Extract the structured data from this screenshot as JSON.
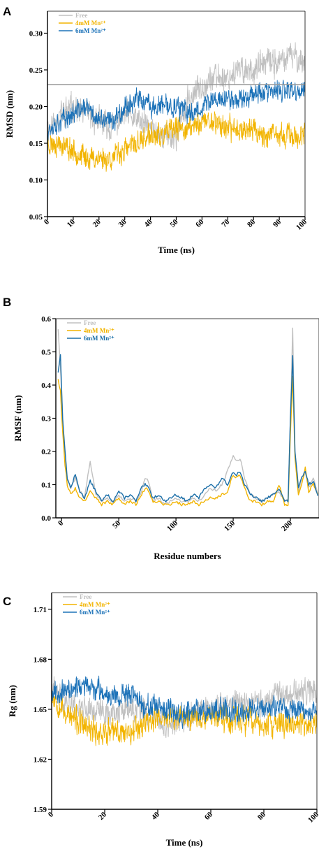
{
  "chart_data": [
    {
      "panel_letter": "A",
      "type": "line",
      "xlabel": "Time (ns)",
      "ylabel": "RMSD (nm)",
      "xlim": [
        0,
        100
      ],
      "ylim": [
        0.05,
        0.33
      ],
      "xticks": [
        0,
        10,
        20,
        30,
        40,
        50,
        60,
        70,
        80,
        90,
        100
      ],
      "yticks": [
        0.05,
        0.1,
        0.15,
        0.2,
        0.25,
        0.3
      ],
      "ytick_labels": [
        "0.05",
        "0.10",
        "0.15",
        "0.20",
        "0.25",
        "0.30"
      ],
      "legend_position": "top-left",
      "reference_line": {
        "y": 0.23,
        "color": "#999999"
      },
      "series": [
        {
          "name": "Free",
          "color": "#c0c0c0",
          "noise": 0.014,
          "seed": 11,
          "x": [
            0,
            5,
            10,
            15,
            20,
            25,
            30,
            35,
            40,
            45,
            50,
            55,
            60,
            65,
            70,
            75,
            80,
            85,
            90,
            95,
            100
          ],
          "y": [
            0.17,
            0.19,
            0.2,
            0.19,
            0.18,
            0.17,
            0.19,
            0.18,
            0.17,
            0.16,
            0.16,
            0.21,
            0.23,
            0.24,
            0.24,
            0.25,
            0.25,
            0.26,
            0.26,
            0.27,
            0.26
          ]
        },
        {
          "name": "4mM Mn²⁺",
          "color": "#f2b400",
          "noise": 0.012,
          "seed": 23,
          "x": [
            0,
            5,
            10,
            15,
            20,
            25,
            30,
            35,
            40,
            45,
            50,
            55,
            60,
            65,
            70,
            75,
            80,
            85,
            90,
            95,
            100
          ],
          "y": [
            0.15,
            0.15,
            0.14,
            0.13,
            0.13,
            0.13,
            0.14,
            0.15,
            0.16,
            0.16,
            0.17,
            0.17,
            0.18,
            0.18,
            0.17,
            0.17,
            0.17,
            0.16,
            0.16,
            0.16,
            0.16
          ]
        },
        {
          "name": "6mM Mn²⁺",
          "color": "#1c72b8",
          "noise": 0.011,
          "seed": 37,
          "x": [
            0,
            5,
            10,
            15,
            20,
            25,
            30,
            35,
            40,
            45,
            50,
            55,
            60,
            65,
            70,
            75,
            80,
            85,
            90,
            95,
            100
          ],
          "y": [
            0.17,
            0.18,
            0.19,
            0.2,
            0.18,
            0.18,
            0.2,
            0.21,
            0.2,
            0.2,
            0.2,
            0.19,
            0.2,
            0.21,
            0.21,
            0.21,
            0.22,
            0.22,
            0.22,
            0.22,
            0.22
          ]
        }
      ]
    },
    {
      "panel_letter": "B",
      "type": "line",
      "xlabel": "Residue numbers",
      "ylabel": "RMSF (nm)",
      "xlim": [
        -5,
        225
      ],
      "ylim": [
        0.0,
        0.6
      ],
      "xticks": [
        0,
        50,
        100,
        150,
        200
      ],
      "yticks": [
        0.0,
        0.1,
        0.2,
        0.3,
        0.4,
        0.5,
        0.6
      ],
      "ytick_labels": [
        "0.0",
        "0.1",
        "0.2",
        "0.3",
        "0.4",
        "0.5",
        "0.6"
      ],
      "legend_position": "top-left",
      "series": [
        {
          "name": "Free",
          "color": "#c0c0c0",
          "noise": 0.004,
          "seed": 5,
          "x": [
            -3,
            -1,
            1,
            3,
            5,
            8,
            12,
            16,
            20,
            25,
            30,
            35,
            40,
            45,
            50,
            55,
            60,
            65,
            70,
            73,
            76,
            80,
            85,
            90,
            95,
            100,
            105,
            110,
            115,
            120,
            125,
            130,
            135,
            140,
            145,
            150,
            153,
            156,
            160,
            165,
            170,
            175,
            180,
            185,
            190,
            195,
            198,
            200,
            202,
            204,
            207,
            210,
            213,
            216,
            220,
            224
          ],
          "y": [
            0.57,
            0.45,
            0.3,
            0.18,
            0.12,
            0.09,
            0.12,
            0.08,
            0.06,
            0.17,
            0.07,
            0.05,
            0.06,
            0.05,
            0.07,
            0.05,
            0.06,
            0.05,
            0.08,
            0.12,
            0.11,
            0.05,
            0.06,
            0.04,
            0.05,
            0.06,
            0.05,
            0.05,
            0.06,
            0.05,
            0.07,
            0.09,
            0.08,
            0.1,
            0.14,
            0.19,
            0.17,
            0.18,
            0.12,
            0.07,
            0.06,
            0.05,
            0.06,
            0.07,
            0.08,
            0.05,
            0.06,
            0.3,
            0.57,
            0.2,
            0.08,
            0.12,
            0.15,
            0.09,
            0.12,
            0.07
          ]
        },
        {
          "name": "4mM Mn²⁺",
          "color": "#f2b400",
          "noise": 0.004,
          "seed": 9,
          "x": [
            -3,
            -1,
            1,
            3,
            5,
            8,
            12,
            16,
            20,
            25,
            30,
            35,
            40,
            45,
            50,
            55,
            60,
            65,
            70,
            73,
            76,
            80,
            85,
            90,
            95,
            100,
            105,
            110,
            115,
            120,
            125,
            130,
            135,
            140,
            145,
            150,
            153,
            156,
            160,
            165,
            170,
            175,
            180,
            185,
            190,
            195,
            198,
            200,
            202,
            204,
            207,
            210,
            213,
            216,
            220,
            224
          ],
          "y": [
            0.42,
            0.38,
            0.26,
            0.16,
            0.1,
            0.07,
            0.09,
            0.06,
            0.05,
            0.08,
            0.06,
            0.04,
            0.05,
            0.04,
            0.06,
            0.04,
            0.05,
            0.04,
            0.07,
            0.09,
            0.08,
            0.05,
            0.05,
            0.04,
            0.04,
            0.05,
            0.04,
            0.04,
            0.05,
            0.04,
            0.05,
            0.06,
            0.06,
            0.07,
            0.08,
            0.13,
            0.12,
            0.13,
            0.09,
            0.05,
            0.05,
            0.04,
            0.05,
            0.05,
            0.1,
            0.04,
            0.04,
            0.25,
            0.43,
            0.18,
            0.07,
            0.1,
            0.15,
            0.08,
            0.1,
            0.07
          ]
        },
        {
          "name": "6mM Mn²⁺",
          "color": "#1c6fa8",
          "noise": 0.004,
          "seed": 13,
          "x": [
            -3,
            -1,
            1,
            3,
            5,
            8,
            12,
            16,
            20,
            25,
            30,
            35,
            40,
            45,
            50,
            55,
            60,
            65,
            70,
            73,
            76,
            80,
            85,
            90,
            95,
            100,
            105,
            110,
            115,
            120,
            125,
            130,
            135,
            140,
            145,
            150,
            153,
            156,
            160,
            165,
            170,
            175,
            180,
            185,
            190,
            195,
            198,
            200,
            202,
            204,
            207,
            210,
            213,
            216,
            220,
            224
          ],
          "y": [
            0.44,
            0.49,
            0.3,
            0.2,
            0.12,
            0.09,
            0.13,
            0.08,
            0.06,
            0.11,
            0.08,
            0.05,
            0.07,
            0.05,
            0.08,
            0.06,
            0.07,
            0.05,
            0.09,
            0.1,
            0.09,
            0.06,
            0.07,
            0.05,
            0.06,
            0.07,
            0.06,
            0.05,
            0.07,
            0.06,
            0.09,
            0.1,
            0.09,
            0.12,
            0.1,
            0.14,
            0.13,
            0.14,
            0.1,
            0.07,
            0.06,
            0.05,
            0.06,
            0.07,
            0.09,
            0.05,
            0.05,
            0.3,
            0.49,
            0.2,
            0.09,
            0.12,
            0.14,
            0.1,
            0.11,
            0.07
          ]
        }
      ]
    },
    {
      "panel_letter": "C",
      "type": "line",
      "xlabel": "Time (ns)",
      "ylabel": "Rg (nm)",
      "xlim": [
        0,
        100
      ],
      "ylim": [
        1.59,
        1.72
      ],
      "xticks": [
        0,
        20,
        40,
        60,
        80,
        100
      ],
      "yticks": [
        1.59,
        1.62,
        1.65,
        1.68,
        1.71
      ],
      "ytick_labels": [
        "1.59",
        "1.62",
        "1.65",
        "1.68",
        "1.71"
      ],
      "legend_position": "top-left",
      "series": [
        {
          "name": "Free",
          "color": "#c0c0c0",
          "noise": 0.006,
          "seed": 41,
          "x": [
            0,
            5,
            10,
            15,
            20,
            25,
            30,
            35,
            40,
            45,
            50,
            55,
            60,
            65,
            70,
            75,
            80,
            85,
            90,
            95,
            100
          ],
          "y": [
            1.663,
            1.655,
            1.652,
            1.65,
            1.648,
            1.648,
            1.65,
            1.648,
            1.643,
            1.64,
            1.645,
            1.648,
            1.65,
            1.652,
            1.655,
            1.655,
            1.653,
            1.657,
            1.658,
            1.66,
            1.662
          ]
        },
        {
          "name": "4mM Mn²⁺",
          "color": "#f2b400",
          "noise": 0.006,
          "seed": 53,
          "x": [
            0,
            5,
            10,
            15,
            20,
            25,
            30,
            35,
            40,
            45,
            50,
            55,
            60,
            65,
            70,
            75,
            80,
            85,
            90,
            95,
            100
          ],
          "y": [
            1.66,
            1.648,
            1.642,
            1.637,
            1.636,
            1.636,
            1.638,
            1.642,
            1.645,
            1.645,
            1.645,
            1.646,
            1.647,
            1.644,
            1.644,
            1.643,
            1.64,
            1.641,
            1.642,
            1.64,
            1.642
          ]
        },
        {
          "name": "6mM Mn²⁺",
          "color": "#1c72b8",
          "noise": 0.005,
          "seed": 67,
          "x": [
            0,
            5,
            10,
            15,
            20,
            25,
            30,
            35,
            40,
            45,
            50,
            55,
            60,
            65,
            70,
            75,
            80,
            85,
            90,
            95,
            100
          ],
          "y": [
            1.662,
            1.66,
            1.664,
            1.663,
            1.66,
            1.658,
            1.66,
            1.652,
            1.65,
            1.648,
            1.648,
            1.65,
            1.65,
            1.65,
            1.649,
            1.65,
            1.65,
            1.651,
            1.65,
            1.649,
            1.65
          ]
        }
      ]
    }
  ]
}
